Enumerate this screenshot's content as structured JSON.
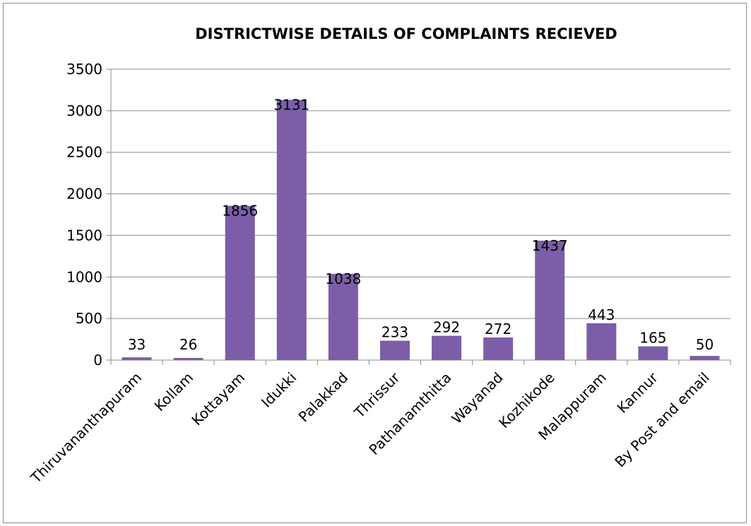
{
  "chart_data": {
    "type": "bar",
    "title": "DISTRICTWISE DETAILS OF COMPLAINTS RECIEVED",
    "xlabel": "",
    "ylabel": "",
    "categories": [
      "Thiruvananthapuram",
      "Kollam",
      "Kottayam",
      "Idukki",
      "Palakkad",
      "Thrissur",
      "Pathanamthitta",
      "Wayanad",
      "Kozhikode",
      "Malappuram",
      "Kannur",
      "By Post and email"
    ],
    "values": [
      33,
      26,
      1856,
      3131,
      1038,
      233,
      292,
      272,
      1437,
      443,
      165,
      50
    ],
    "ylim": [
      0,
      3500
    ],
    "yticks": [
      0,
      500,
      1000,
      1500,
      2000,
      2500,
      3000,
      3500
    ],
    "grid": true,
    "legend": "none",
    "bar_color": "#7b5ea7"
  }
}
